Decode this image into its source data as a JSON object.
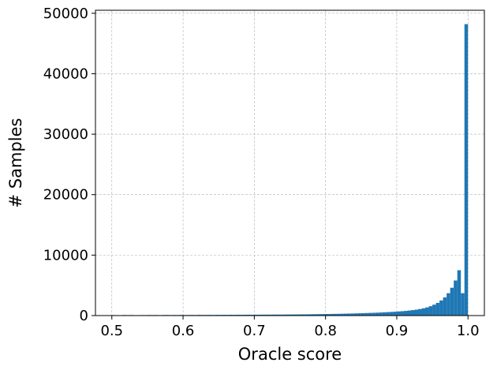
{
  "chart_data": {
    "type": "histogram",
    "xlabel": "Oracle score",
    "ylabel": "# Samples",
    "xlim": [
      0.477,
      1.023
    ],
    "ylim": [
      0,
      50500
    ],
    "xticks": [
      0.5,
      0.6,
      0.7,
      0.8,
      0.9,
      1.0
    ],
    "xtick_labels": [
      "0.5",
      "0.6",
      "0.7",
      "0.8",
      "0.9",
      "1.0"
    ],
    "yticks": [
      0,
      10000,
      20000,
      30000,
      40000,
      50000
    ],
    "ytick_labels": [
      "0",
      "10000",
      "20000",
      "30000",
      "40000",
      "50000"
    ],
    "grid": true,
    "bar_color": "#1f77b4",
    "bin_start": 0.5,
    "bin_width": 0.005,
    "counts": [
      80,
      70,
      60,
      90,
      75,
      85,
      60,
      70,
      80,
      75,
      90,
      80,
      85,
      70,
      90,
      95,
      80,
      90,
      85,
      100,
      90,
      95,
      100,
      90,
      110,
      100,
      105,
      110,
      100,
      115,
      110,
      120,
      115,
      125,
      120,
      130,
      125,
      135,
      140,
      130,
      140,
      145,
      150,
      155,
      150,
      160,
      165,
      160,
      170,
      175,
      180,
      185,
      190,
      200,
      195,
      210,
      220,
      230,
      240,
      250,
      260,
      270,
      280,
      290,
      300,
      315,
      330,
      345,
      360,
      380,
      400,
      420,
      440,
      460,
      480,
      510,
      540,
      570,
      600,
      640,
      680,
      720,
      770,
      830,
      900,
      980,
      1080,
      1200,
      1350,
      1550,
      1800,
      2100,
      2500,
      3000,
      3700,
      4600,
      5800,
      7500,
      3700,
      48200
    ]
  }
}
